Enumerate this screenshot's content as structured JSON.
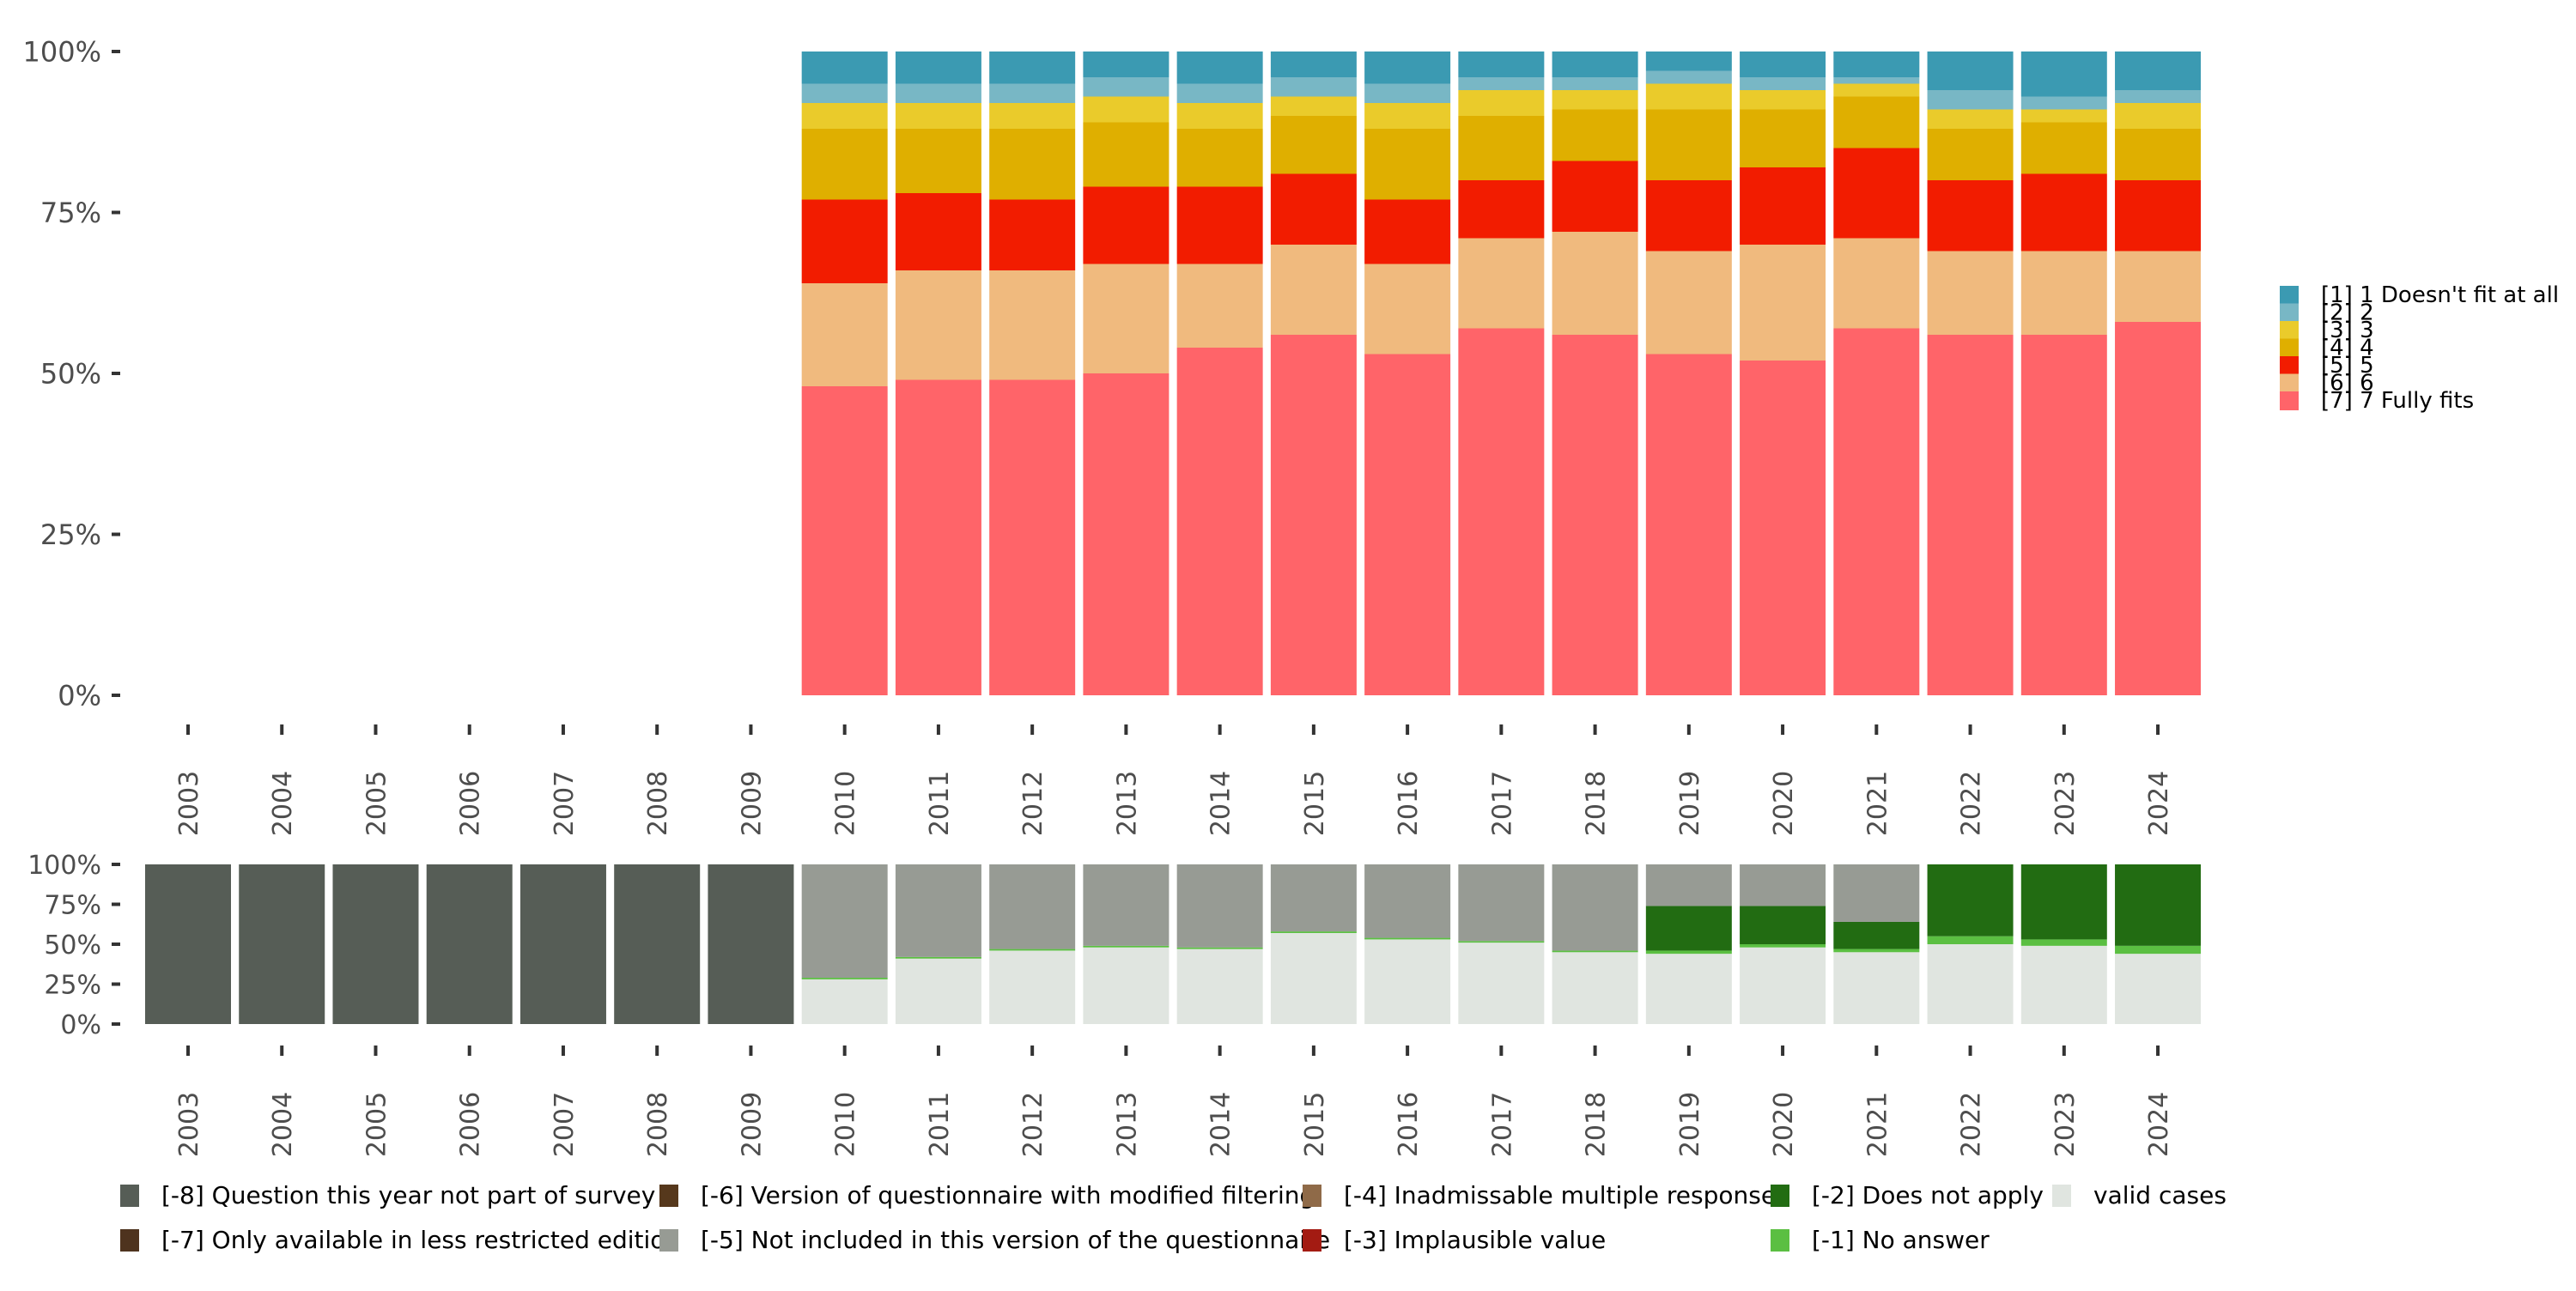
{
  "chart_data": [
    {
      "type": "bar",
      "stacked": true,
      "normalized": true,
      "title": "",
      "xlabel": "",
      "ylabel": "",
      "ylim": [
        0,
        100
      ],
      "y_ticks": [
        "0%",
        "25%",
        "50%",
        "75%",
        "100%"
      ],
      "categories": [
        "2003",
        "2004",
        "2005",
        "2006",
        "2007",
        "2008",
        "2009",
        "2010",
        "2011",
        "2012",
        "2013",
        "2014",
        "2015",
        "2016",
        "2017",
        "2018",
        "2019",
        "2020",
        "2021",
        "2022",
        "2023",
        "2024"
      ],
      "legend_position": "right",
      "series": [
        {
          "name": "[7] 7 Fully fits",
          "color": "#ff6469",
          "values": [
            0,
            0,
            0,
            0,
            0,
            0,
            0,
            48,
            49,
            49,
            50,
            54,
            56,
            53,
            57,
            56,
            53,
            52,
            57,
            56,
            56,
            58
          ]
        },
        {
          "name": "[6] 6",
          "color": "#f0ba7e",
          "values": [
            0,
            0,
            0,
            0,
            0,
            0,
            0,
            16,
            17,
            17,
            17,
            13,
            14,
            14,
            14,
            16,
            16,
            18,
            14,
            13,
            13,
            11
          ]
        },
        {
          "name": "[5] 5",
          "color": "#f21c00",
          "values": [
            0,
            0,
            0,
            0,
            0,
            0,
            0,
            13,
            12,
            11,
            12,
            12,
            11,
            10,
            9,
            11,
            11,
            12,
            14,
            11,
            12,
            11
          ]
        },
        {
          "name": "[4] 4",
          "color": "#dfaf00",
          "values": [
            0,
            0,
            0,
            0,
            0,
            0,
            0,
            11,
            10,
            11,
            10,
            9,
            9,
            11,
            10,
            8,
            11,
            9,
            8,
            8,
            8,
            8
          ]
        },
        {
          "name": "[3] 3",
          "color": "#eacb2b",
          "values": [
            0,
            0,
            0,
            0,
            0,
            0,
            0,
            4,
            4,
            4,
            4,
            4,
            3,
            4,
            4,
            3,
            4,
            3,
            2,
            3,
            2,
            4
          ]
        },
        {
          "name": "[2] 2",
          "color": "#78b7c5",
          "values": [
            0,
            0,
            0,
            0,
            0,
            0,
            0,
            3,
            3,
            3,
            3,
            3,
            3,
            3,
            2,
            2,
            2,
            2,
            1,
            3,
            2,
            2
          ]
        },
        {
          "name": "[1] 1 Doesn't fit at all",
          "color": "#3b9ab2",
          "values": [
            0,
            0,
            0,
            0,
            0,
            0,
            0,
            5,
            5,
            5,
            4,
            5,
            4,
            5,
            4,
            4,
            3,
            4,
            4,
            6,
            7,
            6
          ]
        }
      ]
    },
    {
      "type": "bar",
      "stacked": true,
      "normalized": true,
      "title": "",
      "xlabel": "",
      "ylabel": "",
      "ylim": [
        0,
        100
      ],
      "y_ticks": [
        "0%",
        "25%",
        "50%",
        "75%",
        "100%"
      ],
      "categories": [
        "2003",
        "2004",
        "2005",
        "2006",
        "2007",
        "2008",
        "2009",
        "2010",
        "2011",
        "2012",
        "2013",
        "2014",
        "2015",
        "2016",
        "2017",
        "2018",
        "2019",
        "2020",
        "2021",
        "2022",
        "2023",
        "2024"
      ],
      "legend_position": "bottom",
      "series": [
        {
          "name": "valid cases",
          "color": "#e0e5e0",
          "values": [
            0,
            0,
            0,
            0,
            0,
            0,
            0,
            28,
            41,
            46,
            48,
            47,
            57,
            53,
            51,
            45,
            44,
            48,
            45,
            50,
            49,
            44
          ]
        },
        {
          "name": "[-1] No answer",
          "color": "#5bbf42",
          "values": [
            0,
            0,
            0,
            0,
            0,
            0,
            0,
            1,
            1,
            1,
            1,
            1,
            1,
            1,
            1,
            1,
            2,
            2,
            2,
            5,
            4,
            5
          ]
        },
        {
          "name": "[-2] Does not apply",
          "color": "#226c12",
          "values": [
            0,
            0,
            0,
            0,
            0,
            0,
            0,
            0,
            0,
            0,
            0,
            0,
            0,
            0,
            0,
            0,
            28,
            24,
            17,
            45,
            47,
            51
          ]
        },
        {
          "name": "[-3] Implausible value",
          "color": "#a31b12",
          "values": [
            0,
            0,
            0,
            0,
            0,
            0,
            0,
            0,
            0,
            0,
            0,
            0,
            0,
            0,
            0,
            0,
            0,
            0,
            0,
            0,
            0,
            0
          ]
        },
        {
          "name": "[-4] Inadmissable multiple response",
          "color": "#8f6a48",
          "values": [
            0,
            0,
            0,
            0,
            0,
            0,
            0,
            0,
            0,
            0,
            0,
            0,
            0,
            0,
            0,
            0,
            0,
            0,
            0,
            0,
            0,
            0
          ]
        },
        {
          "name": "[-5] Not included in this version of the questionnaire",
          "color": "#979b94",
          "values": [
            0,
            0,
            0,
            0,
            0,
            0,
            0,
            71,
            58,
            53,
            51,
            52,
            42,
            46,
            48,
            54,
            26,
            26,
            36,
            0,
            0,
            0
          ]
        },
        {
          "name": "[-6] Version of questionnaire with modified filtering",
          "color": "#56381c",
          "values": [
            0,
            0,
            0,
            0,
            0,
            0,
            0,
            0,
            0,
            0,
            0,
            0,
            0,
            0,
            0,
            0,
            0,
            0,
            0,
            0,
            0,
            0
          ]
        },
        {
          "name": "[-7] Only available in less restricted edition",
          "color": "#4e331e",
          "values": [
            0,
            0,
            0,
            0,
            0,
            0,
            0,
            0,
            0,
            0,
            0,
            0,
            0,
            0,
            0,
            0,
            0,
            0,
            0,
            0,
            0,
            0
          ]
        },
        {
          "name": "[-8] Question this year not part of survey",
          "color": "#565d56",
          "values": [
            100,
            100,
            100,
            100,
            100,
            100,
            100,
            0,
            0,
            0,
            0,
            0,
            0,
            0,
            0,
            0,
            0,
            0,
            0,
            0,
            0,
            0
          ]
        }
      ],
      "legend_order": [
        "[-8] Question this year not part of survey",
        "[-7] Only available in less restricted edition",
        "[-6] Version of questionnaire with modified filtering",
        "[-5] Not included in this version of the questionnaire",
        "[-4] Inadmissable multiple response",
        "[-3] Implausible value",
        "[-2] Does not apply",
        "[-1] No answer",
        "valid cases"
      ]
    }
  ]
}
